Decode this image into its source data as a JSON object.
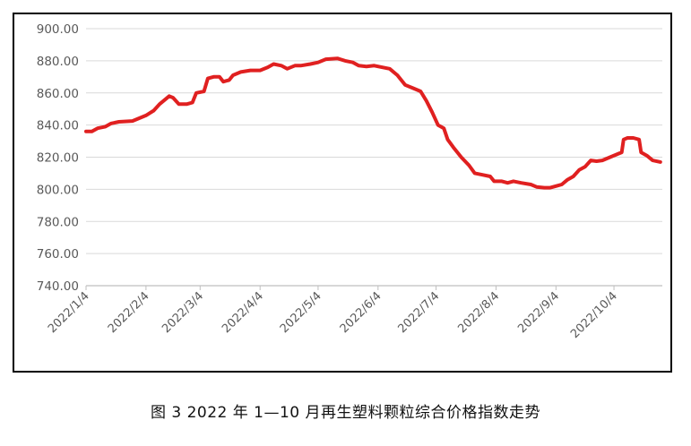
{
  "caption": "图 3  2022 年 1—10 月再生塑料颗粒综合价格指数走势",
  "chart_data": {
    "type": "line",
    "ylim": [
      740,
      900
    ],
    "y_ticks": [
      "740.00",
      "760.00",
      "780.00",
      "800.00",
      "820.00",
      "840.00",
      "860.00",
      "880.00",
      "900.00"
    ],
    "x_ticks": [
      "2022/1/4",
      "2022/2/4",
      "2022/3/4",
      "2022/4/4",
      "2022/5/4",
      "2022/6/4",
      "2022/7/4",
      "2022/8/4",
      "2022/9/4",
      "2022/10/4"
    ],
    "grid": true,
    "colors": {
      "line": "#e02020",
      "grid": "#d9d9d9",
      "axis": "#bfbfbf",
      "tick_text": "#595959"
    },
    "series": [
      {
        "points": [
          [
            "2022-01-04",
            836.0
          ],
          [
            "2022-01-07",
            836.0
          ],
          [
            "2022-01-10",
            838.0
          ],
          [
            "2022-01-14",
            839.0
          ],
          [
            "2022-01-17",
            841.0
          ],
          [
            "2022-01-21",
            842.0
          ],
          [
            "2022-01-28",
            842.5
          ],
          [
            "2022-02-04",
            846.0
          ],
          [
            "2022-02-08",
            849.0
          ],
          [
            "2022-02-11",
            853.0
          ],
          [
            "2022-02-14",
            856.0
          ],
          [
            "2022-02-16",
            858.0
          ],
          [
            "2022-02-18",
            857.0
          ],
          [
            "2022-02-21",
            853.0
          ],
          [
            "2022-02-25",
            853.0
          ],
          [
            "2022-02-28",
            854.0
          ],
          [
            "2022-03-02",
            860.0
          ],
          [
            "2022-03-06",
            861.0
          ],
          [
            "2022-03-08",
            869.0
          ],
          [
            "2022-03-11",
            870.0
          ],
          [
            "2022-03-14",
            870.0
          ],
          [
            "2022-03-16",
            867.0
          ],
          [
            "2022-03-19",
            868.0
          ],
          [
            "2022-03-21",
            871.0
          ],
          [
            "2022-03-25",
            873.0
          ],
          [
            "2022-03-30",
            874.0
          ],
          [
            "2022-04-04",
            874.0
          ],
          [
            "2022-04-08",
            876.0
          ],
          [
            "2022-04-11",
            878.0
          ],
          [
            "2022-04-15",
            877.0
          ],
          [
            "2022-04-18",
            875.0
          ],
          [
            "2022-04-22",
            877.0
          ],
          [
            "2022-04-25",
            877.0
          ],
          [
            "2022-04-30",
            878.0
          ],
          [
            "2022-05-04",
            879.0
          ],
          [
            "2022-05-08",
            881.0
          ],
          [
            "2022-05-14",
            881.5
          ],
          [
            "2022-05-18",
            880.0
          ],
          [
            "2022-05-22",
            879.0
          ],
          [
            "2022-05-25",
            877.0
          ],
          [
            "2022-05-29",
            876.5
          ],
          [
            "2022-06-02",
            877.0
          ],
          [
            "2022-06-06",
            876.0
          ],
          [
            "2022-06-10",
            875.0
          ],
          [
            "2022-06-14",
            871.0
          ],
          [
            "2022-06-18",
            865.0
          ],
          [
            "2022-06-22",
            863.0
          ],
          [
            "2022-06-26",
            861.0
          ],
          [
            "2022-06-29",
            855.0
          ],
          [
            "2022-07-02",
            848.0
          ],
          [
            "2022-07-05",
            840.0
          ],
          [
            "2022-07-08",
            838.0
          ],
          [
            "2022-07-10",
            831.0
          ],
          [
            "2022-07-13",
            826.0
          ],
          [
            "2022-07-17",
            820.0
          ],
          [
            "2022-07-21",
            815.0
          ],
          [
            "2022-07-24",
            810.0
          ],
          [
            "2022-07-28",
            809.0
          ],
          [
            "2022-08-01",
            808.0
          ],
          [
            "2022-08-03",
            805.0
          ],
          [
            "2022-08-07",
            805.0
          ],
          [
            "2022-08-10",
            804.0
          ],
          [
            "2022-08-13",
            805.0
          ],
          [
            "2022-08-17",
            804.0
          ],
          [
            "2022-08-22",
            803.0
          ],
          [
            "2022-08-25",
            801.5
          ],
          [
            "2022-08-29",
            801.0
          ],
          [
            "2022-09-01",
            801.0
          ],
          [
            "2022-09-04",
            802.0
          ],
          [
            "2022-09-07",
            803.0
          ],
          [
            "2022-09-10",
            806.0
          ],
          [
            "2022-09-13",
            808.0
          ],
          [
            "2022-09-16",
            812.0
          ],
          [
            "2022-09-19",
            814.0
          ],
          [
            "2022-09-22",
            818.0
          ],
          [
            "2022-09-25",
            817.5
          ],
          [
            "2022-09-28",
            818.0
          ],
          [
            "2022-10-02",
            820.0
          ],
          [
            "2022-10-06",
            822.0
          ],
          [
            "2022-10-08",
            823.0
          ],
          [
            "2022-10-09",
            831.0
          ],
          [
            "2022-10-11",
            832.0
          ],
          [
            "2022-10-14",
            832.0
          ],
          [
            "2022-10-17",
            831.0
          ],
          [
            "2022-10-18",
            823.0
          ],
          [
            "2022-10-21",
            821.0
          ],
          [
            "2022-10-24",
            818.0
          ],
          [
            "2022-10-28",
            817.0
          ]
        ]
      }
    ]
  }
}
